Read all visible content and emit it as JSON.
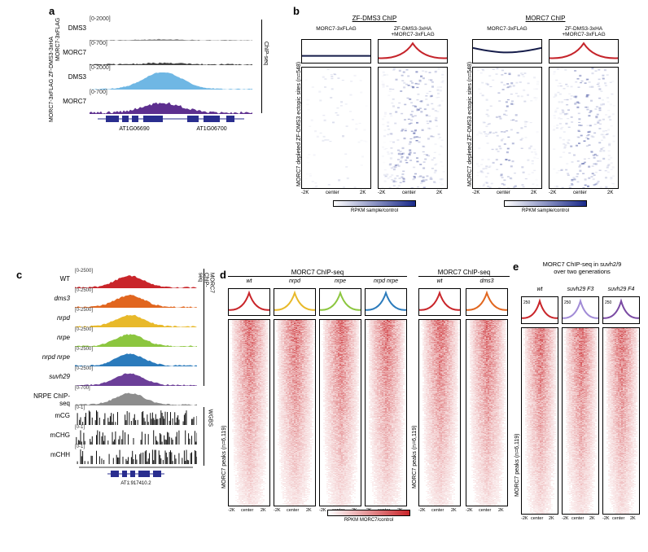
{
  "labels": {
    "a": "a",
    "b": "b",
    "c": "c",
    "d": "d",
    "e": "e"
  },
  "panel_a": {
    "group1_label": "MORC7-3xFLAG",
    "group2_label": "MORC7-3xFLAG\nZF-DMS3-3xHA",
    "side_label": "ChIP-seq",
    "tracks": [
      {
        "name": "DMS3",
        "range": "[0-2000]",
        "color": "#888888",
        "peak": 0.05,
        "noise": 0.05
      },
      {
        "name": "MORC7",
        "range": "[0-700]",
        "color": "#444444",
        "peak": 0.08,
        "noise": 0.08
      },
      {
        "name": "DMS3",
        "range": "[0-2000]",
        "color": "#6fb7e4",
        "peak": 0.95,
        "noise": 0.05
      },
      {
        "name": "MORC7",
        "range": "[0-700]",
        "color": "#5d2f8f",
        "peak": 0.55,
        "noise": 0.15
      }
    ],
    "genes": [
      "AT1G06690",
      "AT1G06700"
    ],
    "gene_color": "#2a2e8f"
  },
  "panel_b": {
    "title_left": "ZF-DMS3 ChIP",
    "title_right": "MORC7 ChIP",
    "cond1": "MORC7-3xFLAG",
    "cond2": "ZF-DMS3-3xHA\n+MORC7-3xFLAG",
    "ylabel": "MORC7 depleted ZF-DMS3\nectopic sites (n=548)",
    "xticks": [
      "-2K",
      "center",
      "2K"
    ],
    "scale_label": "RPKM sample/control",
    "scale_min": "-250",
    "scale_mid": "0",
    "scale_max": "250",
    "colors": {
      "flat_dark": "#151c4a",
      "red": "#c5242b",
      "heat_low": "#ffffff",
      "heat_high": "#1a2a8a"
    },
    "avg_profiles": {
      "left1": "flat",
      "left2": "peak",
      "right1": "lowtrough",
      "right2": "peak"
    },
    "heat_fill": {
      "left1": 0.05,
      "left2": 0.6,
      "right1": 0.35,
      "right2": 0.55
    }
  },
  "panel_c": {
    "tracks": [
      {
        "label": "WT",
        "italic": false,
        "range": "[0-2500]",
        "color": "#c9252a"
      },
      {
        "label": "dms3",
        "italic": true,
        "range": "[0-2500]",
        "color": "#e1661f"
      },
      {
        "label": "nrpd",
        "italic": true,
        "range": "[0-2500]",
        "color": "#e8b92a"
      },
      {
        "label": "nrpe",
        "italic": true,
        "range": "[0-2500]",
        "color": "#8cc63f"
      },
      {
        "label": "nrpd nrpe",
        "italic": true,
        "range": "[0-2500]",
        "color": "#2b7bbc"
      },
      {
        "label": "suvh29",
        "italic": true,
        "range": "[0-2500]",
        "color": "#6c3f99"
      },
      {
        "label": "NRPE ChIP-seq",
        "italic": false,
        "range": "[0-700]",
        "color": "#8d8d8d"
      }
    ],
    "meth": [
      {
        "label": "mCG",
        "range": "[0-1]",
        "color": "#111"
      },
      {
        "label": "mCHG",
        "range": "[0-1]",
        "color": "#111"
      },
      {
        "label": "mCHH",
        "range": "[0-1]",
        "color": "#111"
      }
    ],
    "right_label_top": "MORC7 ChIP-seq",
    "right_label_bot": "WGBS",
    "gene": "AT1:917410.2",
    "gene_color": "#2a2e8f"
  },
  "panel_d": {
    "title_left": "MORC7 ChIP-seq",
    "title_right": "MORC7 ChIP-seq",
    "cols_left": [
      {
        "label": "wt",
        "color": "#c9252a"
      },
      {
        "label": "nrpd",
        "color": "#e8b92a"
      },
      {
        "label": "nrpe",
        "color": "#8cc63f"
      },
      {
        "label": "nrpd nrpe",
        "color": "#2b7bbc"
      }
    ],
    "cols_right": [
      {
        "label": "wt",
        "color": "#c9252a"
      },
      {
        "label": "dms3",
        "color": "#e1661f"
      }
    ],
    "ylabel": "MORC7 peaks (n=6,119)",
    "xticks": [
      "-2K",
      "center",
      "2K"
    ],
    "scale_label": "RPKM MORC7/control",
    "scale_min": "-1000",
    "scale_max": "1000",
    "heat_low": "#ffffff",
    "heat_high": "#c9252a"
  },
  "panel_e": {
    "title": "MORC7 ChIP-seq in suvh2/9\nover two generations",
    "cols": [
      {
        "label": "wt",
        "color": "#c9252a"
      },
      {
        "label": "suvh29 F3",
        "color": "#a18bd6"
      },
      {
        "label": "suvh29 F4",
        "color": "#7a4aa3"
      }
    ],
    "ylabel": "MORC7 peaks (n=6,119)",
    "xticks": [
      "-2K",
      "center",
      "2K"
    ],
    "scale_label": "RPKM MORC7/control",
    "scale_min": "0",
    "scale_max": "250",
    "heat_low": "#ffffff",
    "heat_high": "#c9252a"
  }
}
